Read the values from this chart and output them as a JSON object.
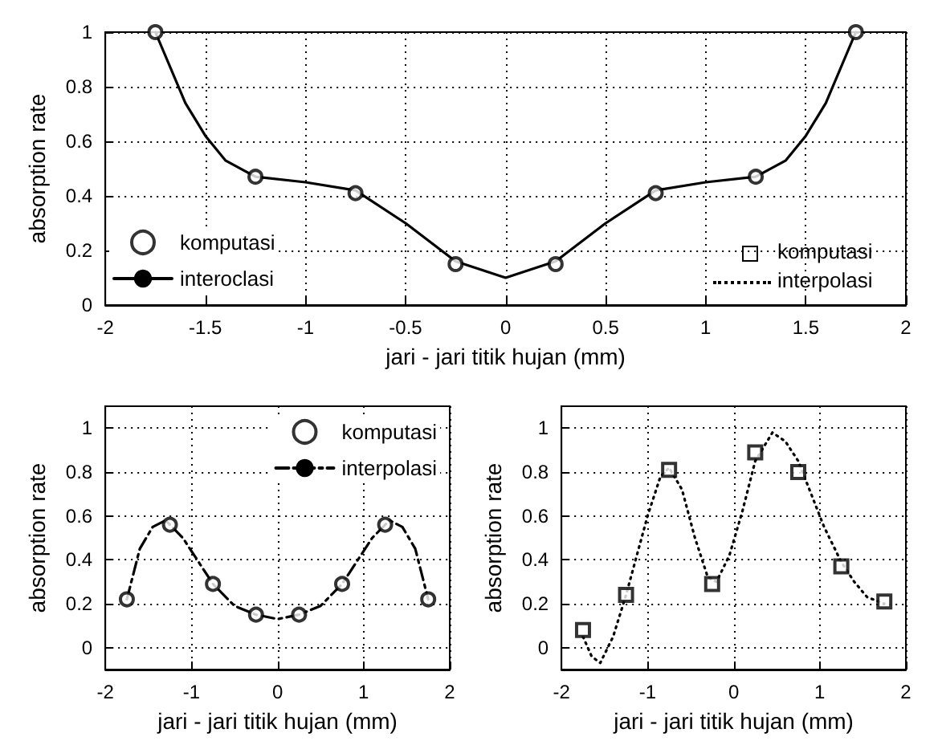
{
  "chart_data": [
    {
      "type": "line",
      "xlabel": "jari - jari titik hujan (mm)",
      "ylabel": "absorption rate",
      "xlim": [
        -2,
        2
      ],
      "xticks": [
        -2,
        -1.5,
        -1,
        -0.5,
        0,
        0.5,
        1,
        1.5,
        2
      ],
      "ylim": [
        0,
        1
      ],
      "yticks": [
        0,
        0.2,
        0.4,
        0.6,
        0.8,
        1
      ],
      "grid": true,
      "legend": "bottom left",
      "annotations": [
        "komputasi",
        "interpolasi"
      ],
      "series": [
        {
          "name": "komputasi",
          "type": "scatter",
          "marker": "circle",
          "color": "#000000",
          "x": [
            -1.75,
            -1.25,
            -0.75,
            -0.25,
            0.25,
            0.75,
            1.25,
            1.75
          ],
          "values": [
            1.0,
            0.47,
            0.41,
            0.15,
            0.15,
            0.41,
            0.47,
            1.0
          ]
        },
        {
          "name": "interoclasi",
          "type": "line",
          "line_style": "solid",
          "marker": "none",
          "color": "#000000",
          "x": [
            -1.75,
            -1.6,
            -1.5,
            -1.4,
            -1.25,
            -1.0,
            -0.75,
            -0.5,
            -0.25,
            0,
            0.25,
            0.5,
            0.75,
            1.0,
            1.25,
            1.4,
            1.5,
            1.6,
            1.75
          ],
          "values": [
            1.0,
            0.74,
            0.62,
            0.53,
            0.47,
            0.45,
            0.42,
            0.3,
            0.16,
            0.1,
            0.16,
            0.3,
            0.42,
            0.45,
            0.47,
            0.53,
            0.62,
            0.74,
            1.0
          ]
        }
      ]
    },
    {
      "type": "line",
      "xlabel": "jari - jari titik hujan (mm)",
      "ylabel": "absorption rate",
      "xlim": [
        -2,
        2
      ],
      "xticks": [
        -2,
        -1,
        0,
        1,
        2
      ],
      "ylim": [
        -0.1,
        1.1
      ],
      "yticks": [
        0,
        0.2,
        0.4,
        0.6,
        0.8,
        1
      ],
      "grid": true,
      "legend": "top right",
      "series": [
        {
          "name": "komputasi",
          "type": "scatter",
          "marker": "circle",
          "color": "#000000",
          "x": [
            -1.75,
            -1.25,
            -0.75,
            -0.25,
            0.25,
            0.75,
            1.25,
            1.75
          ],
          "values": [
            0.22,
            0.56,
            0.29,
            0.15,
            0.15,
            0.29,
            0.56,
            0.22
          ]
        },
        {
          "name": "interpolasi",
          "type": "line",
          "line_style": "dashed",
          "marker": "none",
          "color": "#000000",
          "x": [
            -1.75,
            -1.6,
            -1.45,
            -1.3,
            -1.1,
            -0.9,
            -0.75,
            -0.5,
            -0.25,
            0,
            0.25,
            0.5,
            0.75,
            0.9,
            1.1,
            1.3,
            1.45,
            1.6,
            1.75
          ],
          "values": [
            0.22,
            0.45,
            0.55,
            0.58,
            0.5,
            0.38,
            0.29,
            0.19,
            0.15,
            0.13,
            0.15,
            0.19,
            0.29,
            0.38,
            0.5,
            0.58,
            0.55,
            0.45,
            0.22
          ]
        }
      ]
    },
    {
      "type": "line",
      "xlabel": "jari - jari titik hujan (mm)",
      "ylabel": "absorption rate",
      "xlim": [
        -2,
        2
      ],
      "xticks": [
        -2,
        -1,
        0,
        1,
        2
      ],
      "ylim": [
        -0.1,
        1.1
      ],
      "yticks": [
        0,
        0.2,
        0.4,
        0.6,
        0.8,
        1
      ],
      "grid": true,
      "legend": false,
      "series": [
        {
          "type": "scatter",
          "marker": "square",
          "color": "#000000",
          "x": [
            -1.75,
            -1.25,
            -0.75,
            -0.25,
            0.25,
            0.75,
            1.25,
            1.75
          ],
          "values": [
            0.08,
            0.24,
            0.81,
            0.29,
            0.89,
            0.8,
            0.37,
            0.21
          ]
        },
        {
          "type": "line",
          "line_style": "dotted",
          "marker": "none",
          "color": "#000000",
          "x": [
            -1.75,
            -1.65,
            -1.55,
            -1.4,
            -1.25,
            -1.0,
            -0.85,
            -0.75,
            -0.6,
            -0.45,
            -0.3,
            -0.2,
            -0.05,
            0.1,
            0.25,
            0.45,
            0.6,
            0.75,
            0.9,
            1.05,
            1.25,
            1.4,
            1.55,
            1.75
          ],
          "values": [
            0.05,
            -0.04,
            -0.07,
            0.05,
            0.24,
            0.6,
            0.78,
            0.82,
            0.72,
            0.5,
            0.32,
            0.3,
            0.42,
            0.62,
            0.85,
            0.98,
            0.94,
            0.85,
            0.7,
            0.55,
            0.39,
            0.3,
            0.23,
            0.2
          ]
        }
      ]
    }
  ]
}
